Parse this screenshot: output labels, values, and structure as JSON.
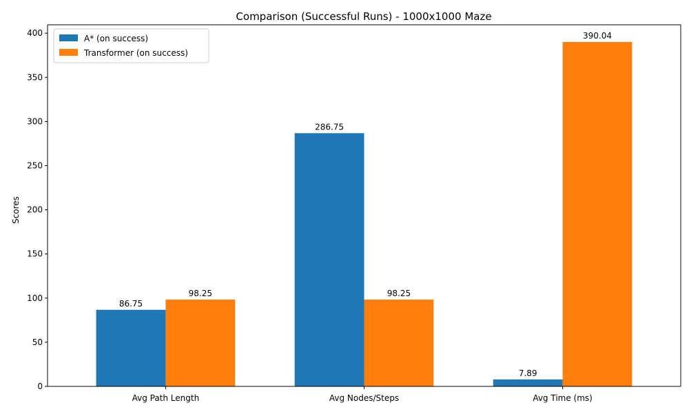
{
  "chart_data": {
    "type": "bar",
    "title": "Comparison (Successful Runs) - 1000x1000 Maze",
    "xlabel": "",
    "ylabel": "Scores",
    "categories": [
      "Avg Path Length",
      "Avg Nodes/Steps",
      "Avg Time (ms)"
    ],
    "series": [
      {
        "name": "A* (on success)",
        "color": "#1f77b4",
        "values": [
          86.75,
          286.75,
          7.89
        ],
        "labels": [
          "86.75",
          "286.75",
          "7.89"
        ]
      },
      {
        "name": "Transformer (on success)",
        "color": "#ff7f0e",
        "values": [
          98.25,
          98.25,
          390.04
        ],
        "labels": [
          "98.25",
          "98.25",
          "390.04"
        ]
      }
    ],
    "ylim": [
      0,
      409.5
    ],
    "yticks": [
      0,
      50,
      100,
      150,
      200,
      250,
      300,
      350,
      400
    ],
    "grid": false,
    "legend_position": "top-left"
  }
}
